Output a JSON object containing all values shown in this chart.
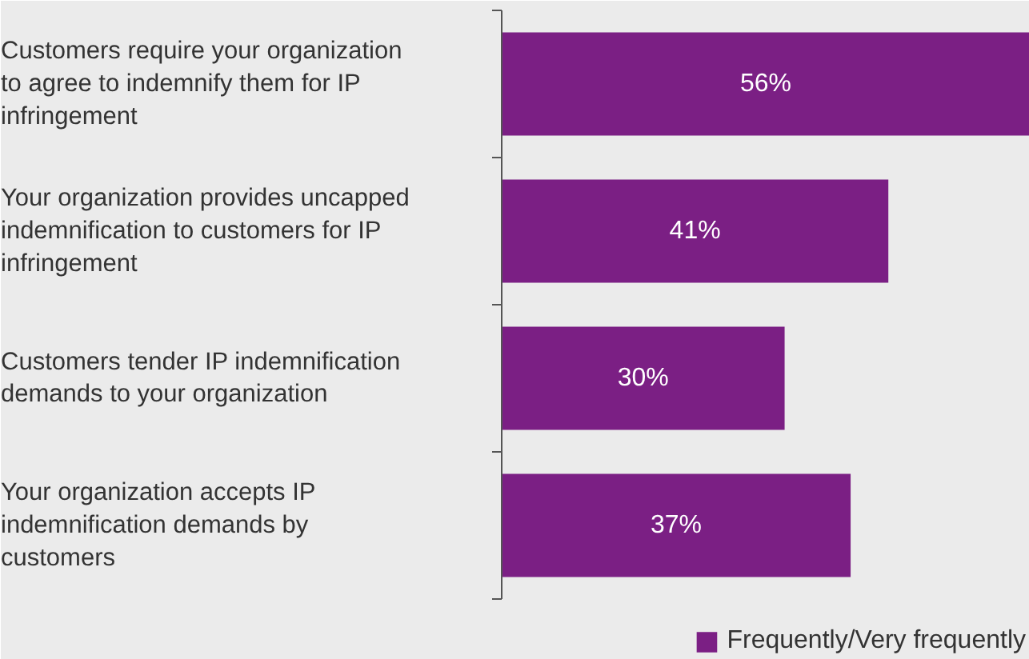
{
  "chart_data": {
    "type": "bar",
    "orientation": "horizontal",
    "categories": [
      "Customers require your organization to agree to indemnify them for IP infringement",
      "Your organization provides uncapped indemnification to customers for IP infringement",
      "Customers tender IP indemnification demands to your organization",
      "Your organization accepts IP indemnification demands by customers"
    ],
    "series": [
      {
        "name": "Frequently/Very frequently",
        "color": "#7b1f84",
        "values": [
          56,
          41,
          30,
          37
        ],
        "value_labels": [
          "56%",
          "41%",
          "30%",
          "37%"
        ]
      }
    ],
    "legend": "bottom right",
    "grid": false
  }
}
